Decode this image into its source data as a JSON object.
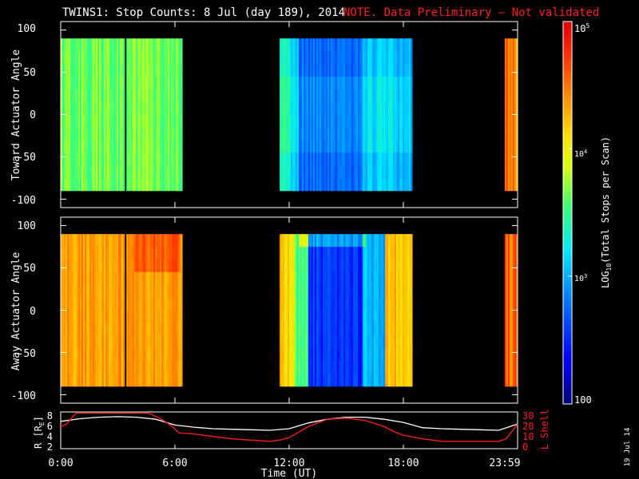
{
  "header": {
    "title": "TWINS1: Stop Counts:  8 Jul (day 189), 2014",
    "note": "NOTE. Data Preliminary — Not validated",
    "note_color": "#ff2020"
  },
  "chart_data": [
    {
      "type": "heatmap",
      "ylabel": "Toward Actuator Angle",
      "ylim": [
        -110,
        110
      ],
      "yticks": [
        "100",
        "50",
        "0",
        "-50",
        "-100"
      ],
      "xlim_hours": [
        0,
        24
      ],
      "data_angle_range": [
        -90,
        90
      ],
      "segments": [
        {
          "start": "0:00",
          "end": "3:20",
          "level": "green-yellow (~10^3.7)"
        },
        {
          "start": "3:30",
          "end": "6:25",
          "level": "green-yellow (~10^3.7)"
        },
        {
          "start": "11:30",
          "end": "18:25",
          "level": "cyan-blue (~10^3.0), darkest 13:00-15:30"
        },
        {
          "start": "23:20",
          "end": "23:59",
          "level": "orange-red (~10^4.5)"
        }
      ]
    },
    {
      "type": "heatmap",
      "ylabel": "Away Actuator Angle",
      "ylim": [
        -110,
        110
      ],
      "yticks": [
        "100",
        "50",
        "0",
        "-50",
        "-100"
      ],
      "xlim_hours": [
        0,
        24
      ],
      "data_angle_range": [
        -90,
        90
      ],
      "segments": [
        {
          "start": "0:00",
          "end": "3:20",
          "level": "orange (~10^4.3)"
        },
        {
          "start": "3:30",
          "end": "6:25",
          "level": "orange (~10^4.4)"
        },
        {
          "start": "11:30",
          "end": "18:25",
          "level": "orange edges, blue center (~10^2.6) 13:00-15:30"
        },
        {
          "start": "23:20",
          "end": "23:59",
          "level": "orange-red (~10^4.5)"
        }
      ]
    },
    {
      "type": "line",
      "xlabel": "Time (UT)",
      "xticks": [
        "0:00",
        "6:00",
        "12:00",
        "18:00",
        "23:59"
      ],
      "ylabel_left": "R [R",
      "ylabel_left_sub": "E",
      "ylabel_left_end": "]",
      "ylabel_right": "L Shell",
      "yticks_left": [
        "8",
        "6",
        "4",
        "2"
      ],
      "ylim_left": [
        1.5,
        8.5
      ],
      "yticks_right": [
        "30",
        "20",
        "10",
        "0"
      ],
      "ylim_right": [
        0,
        30
      ],
      "series": [
        {
          "axis": "left",
          "color": "#ffffff",
          "x": [
            0,
            1,
            2,
            3,
            4,
            5,
            6,
            7,
            8,
            9,
            10,
            11,
            12,
            13,
            14,
            15,
            16,
            17,
            18,
            19,
            20,
            21,
            22,
            23,
            24
          ],
          "y": [
            6.7,
            7.2,
            7.5,
            7.6,
            7.5,
            7.1,
            6.0,
            5.6,
            5.3,
            5.2,
            5.1,
            5.0,
            5.3,
            6.4,
            7.1,
            7.5,
            7.5,
            7.1,
            6.5,
            5.5,
            5.3,
            5.2,
            5.1,
            5.0,
            6.2
          ]
        },
        {
          "axis": "right",
          "color": "#ff2020",
          "x": [
            0,
            0.3,
            0.8,
            4.6,
            5.2,
            5.8,
            6.2,
            7,
            8,
            9,
            10,
            11,
            11.5,
            12,
            13,
            14,
            15,
            16,
            17,
            17.5,
            18,
            19,
            20,
            21,
            22,
            23,
            23.4,
            24
          ],
          "y": [
            18,
            20,
            29,
            29,
            25,
            19,
            13,
            12,
            10,
            8,
            7,
            6,
            7,
            9,
            18,
            24,
            25,
            23,
            18,
            14,
            11,
            8,
            6,
            6,
            6,
            6,
            8,
            20
          ]
        }
      ]
    }
  ],
  "colorbar": {
    "label": "LOG",
    "label_sub": "10",
    "label_tail": "(Total Stops per Scan)",
    "tick_100": "100",
    "tick_base": "10",
    "tick_exps": [
      "3",
      "4",
      "5"
    ],
    "log_range": [
      2,
      5
    ]
  },
  "footer": {
    "date_stamp": "19 Jul 14"
  }
}
